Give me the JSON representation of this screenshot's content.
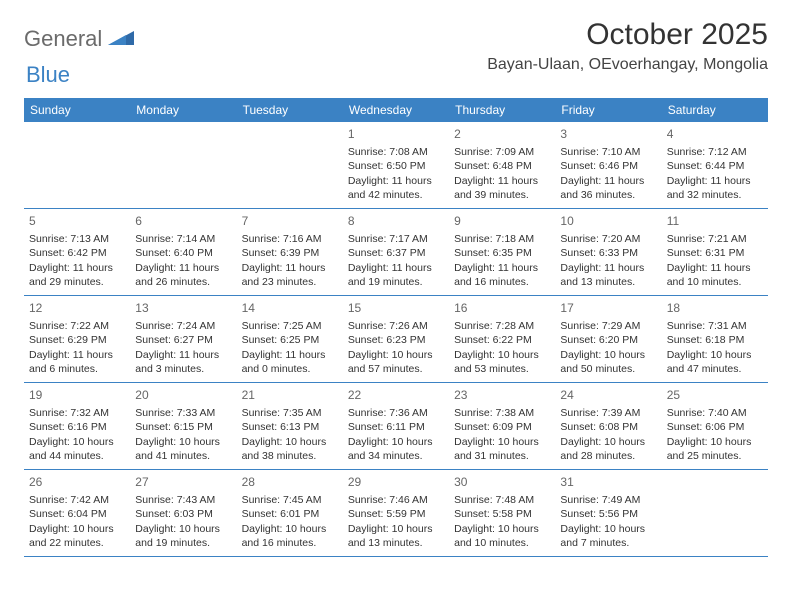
{
  "logo": {
    "part1": "General",
    "part2": "Blue"
  },
  "title": "October 2025",
  "location": "Bayan-Ulaan, OEvoerhangay, Mongolia",
  "colors": {
    "header_bg": "#3b82c4",
    "header_text": "#ffffff",
    "border": "#3b82c4",
    "daynum": "#666666",
    "body_text": "#333333",
    "logo_gray": "#6b6b6b",
    "logo_blue": "#3b82c4",
    "background": "#ffffff"
  },
  "typography": {
    "title_fontsize": 30,
    "location_fontsize": 16,
    "dow_fontsize": 12,
    "daynum_fontsize": 12,
    "cell_fontsize": 10.5
  },
  "days_of_week": [
    "Sunday",
    "Monday",
    "Tuesday",
    "Wednesday",
    "Thursday",
    "Friday",
    "Saturday"
  ],
  "weeks": [
    [
      null,
      null,
      null,
      {
        "n": "1",
        "sunrise": "Sunrise: 7:08 AM",
        "sunset": "Sunset: 6:50 PM",
        "d1": "Daylight: 11 hours",
        "d2": "and 42 minutes."
      },
      {
        "n": "2",
        "sunrise": "Sunrise: 7:09 AM",
        "sunset": "Sunset: 6:48 PM",
        "d1": "Daylight: 11 hours",
        "d2": "and 39 minutes."
      },
      {
        "n": "3",
        "sunrise": "Sunrise: 7:10 AM",
        "sunset": "Sunset: 6:46 PM",
        "d1": "Daylight: 11 hours",
        "d2": "and 36 minutes."
      },
      {
        "n": "4",
        "sunrise": "Sunrise: 7:12 AM",
        "sunset": "Sunset: 6:44 PM",
        "d1": "Daylight: 11 hours",
        "d2": "and 32 minutes."
      }
    ],
    [
      {
        "n": "5",
        "sunrise": "Sunrise: 7:13 AM",
        "sunset": "Sunset: 6:42 PM",
        "d1": "Daylight: 11 hours",
        "d2": "and 29 minutes."
      },
      {
        "n": "6",
        "sunrise": "Sunrise: 7:14 AM",
        "sunset": "Sunset: 6:40 PM",
        "d1": "Daylight: 11 hours",
        "d2": "and 26 minutes."
      },
      {
        "n": "7",
        "sunrise": "Sunrise: 7:16 AM",
        "sunset": "Sunset: 6:39 PM",
        "d1": "Daylight: 11 hours",
        "d2": "and 23 minutes."
      },
      {
        "n": "8",
        "sunrise": "Sunrise: 7:17 AM",
        "sunset": "Sunset: 6:37 PM",
        "d1": "Daylight: 11 hours",
        "d2": "and 19 minutes."
      },
      {
        "n": "9",
        "sunrise": "Sunrise: 7:18 AM",
        "sunset": "Sunset: 6:35 PM",
        "d1": "Daylight: 11 hours",
        "d2": "and 16 minutes."
      },
      {
        "n": "10",
        "sunrise": "Sunrise: 7:20 AM",
        "sunset": "Sunset: 6:33 PM",
        "d1": "Daylight: 11 hours",
        "d2": "and 13 minutes."
      },
      {
        "n": "11",
        "sunrise": "Sunrise: 7:21 AM",
        "sunset": "Sunset: 6:31 PM",
        "d1": "Daylight: 11 hours",
        "d2": "and 10 minutes."
      }
    ],
    [
      {
        "n": "12",
        "sunrise": "Sunrise: 7:22 AM",
        "sunset": "Sunset: 6:29 PM",
        "d1": "Daylight: 11 hours",
        "d2": "and 6 minutes."
      },
      {
        "n": "13",
        "sunrise": "Sunrise: 7:24 AM",
        "sunset": "Sunset: 6:27 PM",
        "d1": "Daylight: 11 hours",
        "d2": "and 3 minutes."
      },
      {
        "n": "14",
        "sunrise": "Sunrise: 7:25 AM",
        "sunset": "Sunset: 6:25 PM",
        "d1": "Daylight: 11 hours",
        "d2": "and 0 minutes."
      },
      {
        "n": "15",
        "sunrise": "Sunrise: 7:26 AM",
        "sunset": "Sunset: 6:23 PM",
        "d1": "Daylight: 10 hours",
        "d2": "and 57 minutes."
      },
      {
        "n": "16",
        "sunrise": "Sunrise: 7:28 AM",
        "sunset": "Sunset: 6:22 PM",
        "d1": "Daylight: 10 hours",
        "d2": "and 53 minutes."
      },
      {
        "n": "17",
        "sunrise": "Sunrise: 7:29 AM",
        "sunset": "Sunset: 6:20 PM",
        "d1": "Daylight: 10 hours",
        "d2": "and 50 minutes."
      },
      {
        "n": "18",
        "sunrise": "Sunrise: 7:31 AM",
        "sunset": "Sunset: 6:18 PM",
        "d1": "Daylight: 10 hours",
        "d2": "and 47 minutes."
      }
    ],
    [
      {
        "n": "19",
        "sunrise": "Sunrise: 7:32 AM",
        "sunset": "Sunset: 6:16 PM",
        "d1": "Daylight: 10 hours",
        "d2": "and 44 minutes."
      },
      {
        "n": "20",
        "sunrise": "Sunrise: 7:33 AM",
        "sunset": "Sunset: 6:15 PM",
        "d1": "Daylight: 10 hours",
        "d2": "and 41 minutes."
      },
      {
        "n": "21",
        "sunrise": "Sunrise: 7:35 AM",
        "sunset": "Sunset: 6:13 PM",
        "d1": "Daylight: 10 hours",
        "d2": "and 38 minutes."
      },
      {
        "n": "22",
        "sunrise": "Sunrise: 7:36 AM",
        "sunset": "Sunset: 6:11 PM",
        "d1": "Daylight: 10 hours",
        "d2": "and 34 minutes."
      },
      {
        "n": "23",
        "sunrise": "Sunrise: 7:38 AM",
        "sunset": "Sunset: 6:09 PM",
        "d1": "Daylight: 10 hours",
        "d2": "and 31 minutes."
      },
      {
        "n": "24",
        "sunrise": "Sunrise: 7:39 AM",
        "sunset": "Sunset: 6:08 PM",
        "d1": "Daylight: 10 hours",
        "d2": "and 28 minutes."
      },
      {
        "n": "25",
        "sunrise": "Sunrise: 7:40 AM",
        "sunset": "Sunset: 6:06 PM",
        "d1": "Daylight: 10 hours",
        "d2": "and 25 minutes."
      }
    ],
    [
      {
        "n": "26",
        "sunrise": "Sunrise: 7:42 AM",
        "sunset": "Sunset: 6:04 PM",
        "d1": "Daylight: 10 hours",
        "d2": "and 22 minutes."
      },
      {
        "n": "27",
        "sunrise": "Sunrise: 7:43 AM",
        "sunset": "Sunset: 6:03 PM",
        "d1": "Daylight: 10 hours",
        "d2": "and 19 minutes."
      },
      {
        "n": "28",
        "sunrise": "Sunrise: 7:45 AM",
        "sunset": "Sunset: 6:01 PM",
        "d1": "Daylight: 10 hours",
        "d2": "and 16 minutes."
      },
      {
        "n": "29",
        "sunrise": "Sunrise: 7:46 AM",
        "sunset": "Sunset: 5:59 PM",
        "d1": "Daylight: 10 hours",
        "d2": "and 13 minutes."
      },
      {
        "n": "30",
        "sunrise": "Sunrise: 7:48 AM",
        "sunset": "Sunset: 5:58 PM",
        "d1": "Daylight: 10 hours",
        "d2": "and 10 minutes."
      },
      {
        "n": "31",
        "sunrise": "Sunrise: 7:49 AM",
        "sunset": "Sunset: 5:56 PM",
        "d1": "Daylight: 10 hours",
        "d2": "and 7 minutes."
      },
      null
    ]
  ]
}
